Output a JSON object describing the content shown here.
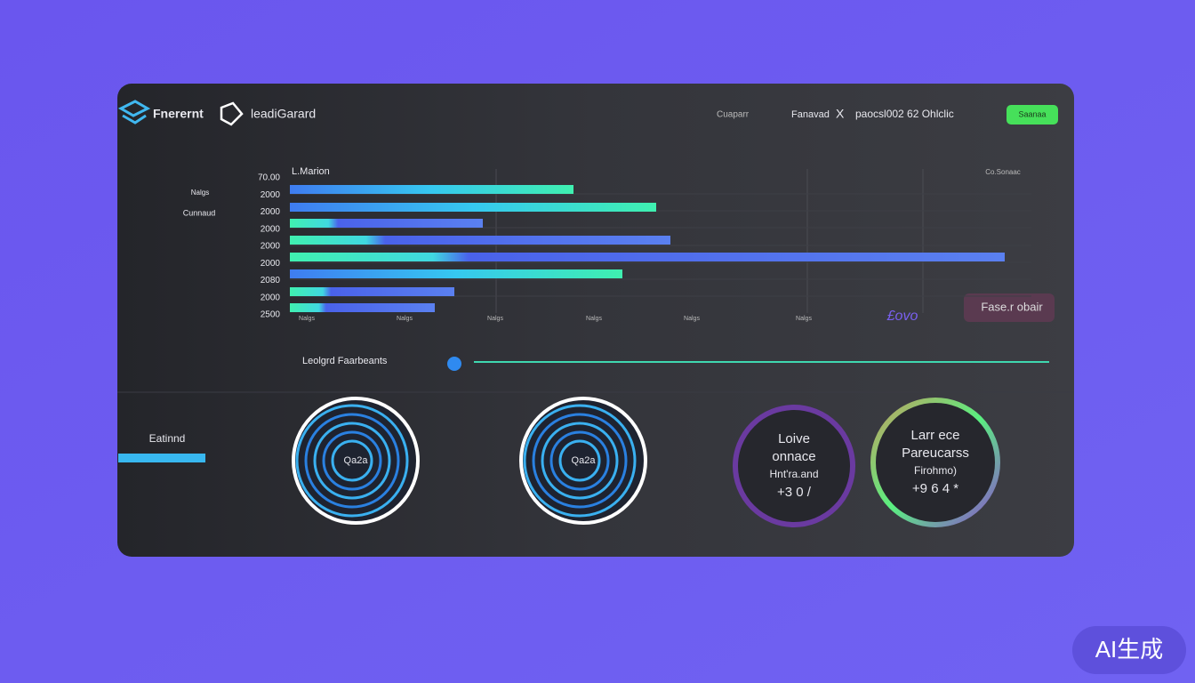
{
  "header": {
    "brand": "Fnerernt",
    "product": "leadiGarard",
    "nav": [
      "Cuaparr",
      "Fanavad",
      "X",
      "paocsl002 62 Ohlclic"
    ],
    "button": "Saanaa"
  },
  "sidebar": {
    "items": [
      "Nalgs",
      "Cunnaud"
    ],
    "section": "Eatinnd"
  },
  "chart": {
    "title": "L.Marion",
    "corner_label": "Co.Sonaac",
    "row_labels": [
      "70.00",
      "2000",
      "2000",
      "2000",
      "2000",
      "2000",
      "2080",
      "2000",
      "2500"
    ],
    "column_labels": [
      "Nalgs",
      "Nalgs",
      "Nalgs",
      "Nalgs",
      "Nalgs",
      "Nalgs"
    ],
    "badge": "£ovo",
    "pill": "Fase.r obair"
  },
  "slider": {
    "label": "Leolgrd Faarbeants"
  },
  "gauges": [
    {
      "lines": [
        "Qa2a"
      ]
    },
    {
      "lines": [
        "Qa2a"
      ]
    },
    {
      "lines": [
        "Loive",
        "onnace",
        "Hnt'ra.and",
        "+3 0 /"
      ]
    },
    {
      "lines": [
        "Larr ece",
        "Pareucarss",
        "Firohmo)",
        "+9 6 4 *"
      ]
    }
  ],
  "watermark": "AI生成"
}
